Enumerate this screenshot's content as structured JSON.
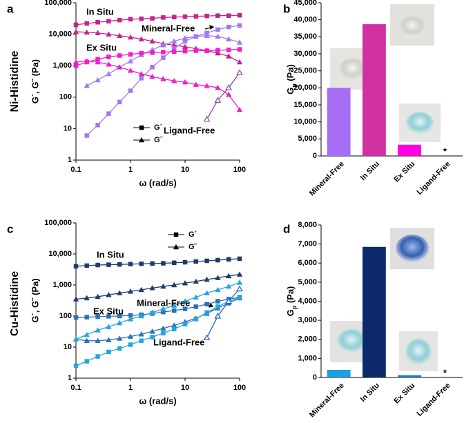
{
  "chart_data": [
    {
      "type": "line",
      "panel": "a",
      "row_label": "Ni-Histidine",
      "x_label": "ω (rad/s)",
      "y_label": "G´, G˝ (Pa)",
      "log_x": true,
      "log_y": true,
      "xlim": [
        0.1,
        100
      ],
      "ylim": [
        1,
        100000
      ],
      "xticks": [
        0.1,
        1,
        10,
        100
      ],
      "yticks": [
        1,
        10,
        100,
        {
          "value": 1000,
          "label": "1,000"
        },
        {
          "value": 10000,
          "label": "10,000"
        },
        {
          "value": 100000,
          "label": "100,000"
        }
      ],
      "legend": [
        {
          "label": "G´",
          "marker": "square"
        },
        {
          "label": "G˝",
          "marker": "triangle"
        }
      ],
      "x": [
        0.1,
        0.158,
        0.251,
        0.398,
        0.631,
        1,
        1.58,
        2.51,
        3.98,
        6.31,
        10,
        15.8,
        25.1,
        39.8,
        63.1,
        100
      ],
      "series": [
        {
          "name": "In Situ",
          "color": "#c7228f",
          "storage": [
            20000,
            22000,
            24000,
            26000,
            28000,
            30000,
            31000,
            32000,
            34000,
            35000,
            36000,
            37000,
            38000,
            39000,
            39000,
            40000
          ],
          "loss": [
            12000,
            11500,
            11000,
            10000,
            9000,
            8000,
            7000,
            6000,
            5000,
            4500,
            4000,
            3500,
            3000,
            2500,
            2000,
            1300
          ]
        },
        {
          "name": "Mineral-Free",
          "color": "#a07af2",
          "storage": [
            null,
            6,
            13,
            30,
            70,
            160,
            400,
            900,
            1800,
            3500,
            6000,
            8500,
            11000,
            14000,
            17000,
            19000
          ],
          "loss": [
            null,
            230,
            350,
            550,
            900,
            1400,
            2200,
            3200,
            4500,
            6000,
            7500,
            8500,
            9000,
            8500,
            7000,
            5500
          ]
        },
        {
          "name": "Ex Situ",
          "color": "#f21ec8",
          "storage": [
            1000,
            1300,
            1600,
            1900,
            2100,
            2300,
            2500,
            2600,
            2700,
            2800,
            2900,
            3000,
            3000,
            3100,
            3200,
            3300
          ],
          "loss": [
            1300,
            1400,
            1300,
            1100,
            900,
            700,
            550,
            450,
            380,
            330,
            300,
            250,
            230,
            200,
            120,
            40
          ]
        },
        {
          "name": "Ligand-Free",
          "color": "#8c42b4",
          "open": true,
          "loss": [
            null,
            null,
            null,
            null,
            null,
            null,
            null,
            null,
            null,
            null,
            null,
            null,
            20,
            80,
            200,
            600
          ]
        }
      ]
    },
    {
      "type": "bar",
      "panel": "b",
      "y_label_main": "G",
      "y_label_sub": "p",
      "y_label_unit": " (Pa)",
      "categories": [
        "Mineral-Free",
        "In Situ",
        "Ex Situ",
        "Ligand-Free"
      ],
      "values": [
        20000,
        38700,
        3300,
        0
      ],
      "colors": [
        "#a66df5",
        "#d030a0",
        "#ff00e0",
        "#8c42b4"
      ],
      "note": "*",
      "ylim": [
        0,
        45000
      ],
      "yticks": [
        0,
        {
          "value": 5000,
          "label": "5,000"
        },
        {
          "value": 10000,
          "label": "10,000"
        },
        {
          "value": 15000,
          "label": "15,000"
        },
        {
          "value": 20000,
          "label": "20,000"
        },
        {
          "value": 25000,
          "label": "25,000"
        },
        {
          "value": 30000,
          "label": "30,000"
        },
        {
          "value": 35000,
          "label": "35,000"
        },
        {
          "value": 40000,
          "label": "40,000"
        },
        {
          "value": 45000,
          "label": "45,000"
        }
      ]
    },
    {
      "type": "line",
      "panel": "c",
      "row_label": "Cu-Histidine",
      "x_label": "ω (rad/s)",
      "y_label": "G´, G˝ (Pa)",
      "log_x": true,
      "log_y": true,
      "xlim": [
        0.1,
        100
      ],
      "ylim": [
        1,
        100000
      ],
      "xticks": [
        0.1,
        1,
        10,
        100
      ],
      "yticks": [
        1,
        10,
        100,
        {
          "value": 1000,
          "label": "1,000"
        },
        {
          "value": 10000,
          "label": "10,000"
        },
        {
          "value": 100000,
          "label": "100,000"
        }
      ],
      "legend": [
        {
          "label": "G´",
          "marker": "square"
        },
        {
          "label": "G˝",
          "marker": "triangle"
        }
      ],
      "x": [
        0.1,
        0.158,
        0.251,
        0.398,
        0.631,
        1,
        1.58,
        2.51,
        3.98,
        6.31,
        10,
        15.8,
        25.1,
        39.8,
        63.1,
        100
      ],
      "series": [
        {
          "name": "In Situ",
          "color": "#203a6c",
          "storage": [
            4000,
            4200,
            4400,
            4500,
            4600,
            4700,
            4800,
            4900,
            5000,
            5200,
            5400,
            5700,
            6000,
            6300,
            6700,
            7000
          ],
          "loss": [
            350,
            380,
            420,
            480,
            550,
            620,
            700,
            800,
            900,
            1000,
            1150,
            1300,
            1500,
            1700,
            1950,
            2200
          ]
        },
        {
          "name": "Ex Situ",
          "color": "#2a72b8",
          "storage": [
            90,
            92,
            95,
            98,
            100,
            105,
            110,
            120,
            135,
            150,
            170,
            200,
            240,
            300,
            350,
            400
          ],
          "loss": [
            18,
            16,
            16,
            17,
            19,
            22,
            26,
            32,
            40,
            50,
            65,
            85,
            120,
            180,
            260,
            380
          ]
        },
        {
          "name": "Mineral-Free",
          "color": "#22a6de",
          "storage": [
            2.5,
            3.5,
            5,
            7,
            9,
            12,
            16,
            21,
            28,
            38,
            55,
            80,
            130,
            200,
            300,
            380
          ],
          "loss": [
            18,
            25,
            35,
            45,
            60,
            80,
            100,
            130,
            170,
            220,
            300,
            400,
            550,
            700,
            900,
            1200
          ]
        },
        {
          "name": "Ligand-Free",
          "color": "#1f62d2",
          "open": true,
          "loss": [
            null,
            null,
            null,
            null,
            null,
            null,
            null,
            null,
            null,
            null,
            null,
            null,
            20,
            100,
            300,
            750
          ]
        }
      ]
    },
    {
      "type": "bar",
      "panel": "d",
      "y_label_main": "G",
      "y_label_sub": "p",
      "y_label_unit": " (Pa)",
      "categories": [
        "Mineral-Free",
        "In Situ",
        "Ex Situ",
        "Ligand-Free"
      ],
      "values": [
        400,
        6850,
        120,
        0
      ],
      "colors": [
        "#1ba0e0",
        "#0c2a6b",
        "#1a80d0",
        "#1f62d2"
      ],
      "note": "*",
      "ylim": [
        0,
        8000
      ],
      "yticks": [
        0,
        {
          "value": 1000,
          "label": "1,000"
        },
        {
          "value": 2000,
          "label": "2,000"
        },
        {
          "value": 3000,
          "label": "3,000"
        },
        {
          "value": 4000,
          "label": "4,000"
        },
        {
          "value": 5000,
          "label": "5,000"
        },
        {
          "value": 6000,
          "label": "6,000"
        },
        {
          "value": 7000,
          "label": "7,000"
        },
        {
          "value": 8000,
          "label": "8,000"
        }
      ]
    }
  ]
}
